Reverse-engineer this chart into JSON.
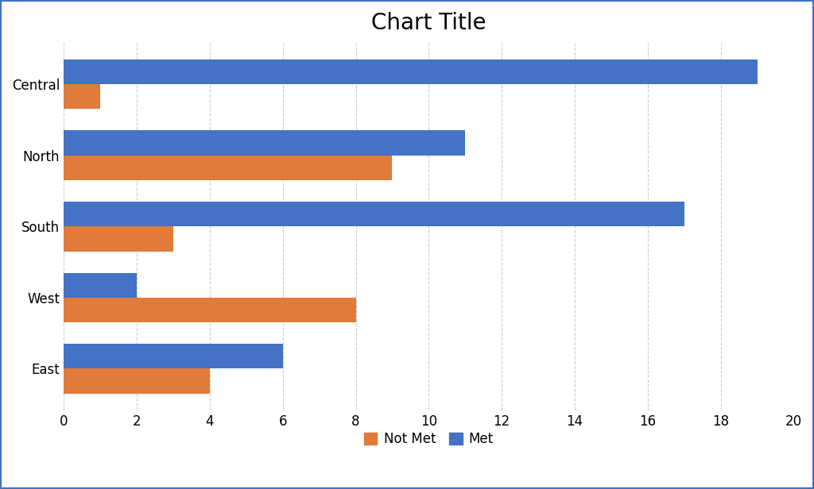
{
  "title": "Chart Title",
  "categories": [
    "Central",
    "North",
    "South",
    "West",
    "East"
  ],
  "not_met": [
    1,
    9,
    3,
    8,
    4
  ],
  "met": [
    19,
    11,
    17,
    2,
    6
  ],
  "not_met_color": "#E07B39",
  "met_color": "#4472C4",
  "xlim": [
    0,
    20
  ],
  "xticks": [
    0,
    2,
    4,
    6,
    8,
    10,
    12,
    14,
    16,
    18,
    20
  ],
  "legend_labels": [
    "Not Met",
    "Met"
  ],
  "title_fontsize": 20,
  "tick_fontsize": 12,
  "legend_fontsize": 12,
  "bar_height": 0.35,
  "background_color": "#ffffff",
  "grid_color": "#cccccc",
  "border_color": "#4472C4"
}
